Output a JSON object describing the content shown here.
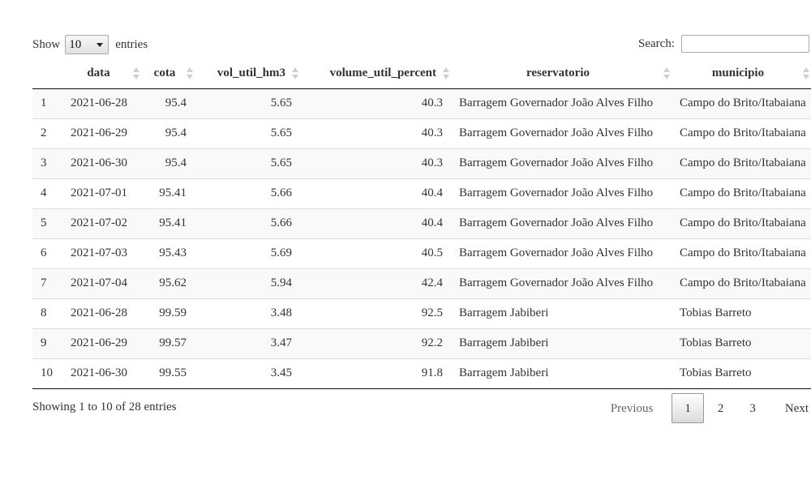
{
  "length_menu": {
    "prefix": "Show",
    "value": "10",
    "suffix": "entries"
  },
  "search": {
    "label": "Search:",
    "value": ""
  },
  "table": {
    "columns": [
      "",
      "data",
      "cota",
      "vol_util_hm3",
      "volume_util_percent",
      "reservatorio",
      "municipio"
    ],
    "rows": [
      [
        "1",
        "2021-06-28",
        "95.4",
        "5.65",
        "40.3",
        "Barragem Governador João Alves Filho",
        "Campo do Brito/Itabaiana"
      ],
      [
        "2",
        "2021-06-29",
        "95.4",
        "5.65",
        "40.3",
        "Barragem Governador João Alves Filho",
        "Campo do Brito/Itabaiana"
      ],
      [
        "3",
        "2021-06-30",
        "95.4",
        "5.65",
        "40.3",
        "Barragem Governador João Alves Filho",
        "Campo do Brito/Itabaiana"
      ],
      [
        "4",
        "2021-07-01",
        "95.41",
        "5.66",
        "40.4",
        "Barragem Governador João Alves Filho",
        "Campo do Brito/Itabaiana"
      ],
      [
        "5",
        "2021-07-02",
        "95.41",
        "5.66",
        "40.4",
        "Barragem Governador João Alves Filho",
        "Campo do Brito/Itabaiana"
      ],
      [
        "6",
        "2021-07-03",
        "95.43",
        "5.69",
        "40.5",
        "Barragem Governador João Alves Filho",
        "Campo do Brito/Itabaiana"
      ],
      [
        "7",
        "2021-07-04",
        "95.62",
        "5.94",
        "42.4",
        "Barragem Governador João Alves Filho",
        "Campo do Brito/Itabaiana"
      ],
      [
        "8",
        "2021-06-28",
        "99.59",
        "3.48",
        "92.5",
        "Barragem Jabiberi",
        "Tobias Barreto"
      ],
      [
        "9",
        "2021-06-29",
        "99.57",
        "3.47",
        "92.2",
        "Barragem Jabiberi",
        "Tobias Barreto"
      ],
      [
        "10",
        "2021-06-30",
        "99.55",
        "3.45",
        "91.8",
        "Barragem Jabiberi",
        "Tobias Barreto"
      ]
    ]
  },
  "info": "Showing 1 to 10 of 28 entries",
  "pagination": {
    "previous": "Previous",
    "pages": [
      "1",
      "2",
      "3"
    ],
    "current": "1",
    "next": "Next"
  }
}
